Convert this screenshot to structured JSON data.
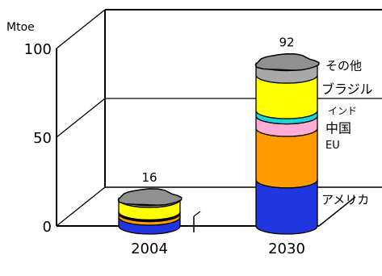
{
  "chart_data": {
    "type": "bar",
    "style": "3d-stacked-cylinder",
    "title": "",
    "xlabel": "",
    "ylabel": "Mtoe",
    "ylim": [
      0,
      100
    ],
    "y_ticks": [
      0,
      50,
      100
    ],
    "grid": "horizontal-back-wall",
    "categories": [
      "2004",
      "2030"
    ],
    "totals": [
      16,
      92
    ],
    "series": [
      {
        "name": "アメリカ",
        "color": "#1f36e0",
        "values": [
          5,
          26
        ]
      },
      {
        "name": "EU",
        "color": "#ff9a00",
        "values": [
          2,
          29
        ]
      },
      {
        "name": "中国",
        "color": "#ffadd6",
        "values": [
          0.5,
          7
        ]
      },
      {
        "name": "インド",
        "color": "#19d6d6",
        "values": [
          0.5,
          3
        ]
      },
      {
        "name": "ブラジル",
        "color": "#ffff00",
        "values": [
          7,
          20
        ]
      },
      {
        "name": "その他",
        "color": "#a9a9a9",
        "values": [
          1,
          7
        ]
      }
    ]
  }
}
